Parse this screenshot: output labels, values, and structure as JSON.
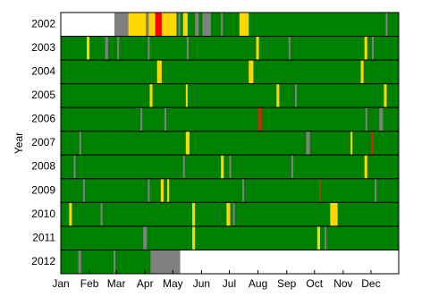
{
  "chart_data": {
    "type": "timeline",
    "y_label": "Year",
    "base_color": "#008000",
    "xlim": [
      0,
      365
    ],
    "xticks": [
      {
        "value": 0,
        "label": "Jan"
      },
      {
        "value": 31,
        "label": "Feb"
      },
      {
        "value": 60,
        "label": "Mar"
      },
      {
        "value": 91,
        "label": "Apr"
      },
      {
        "value": 121,
        "label": "May"
      },
      {
        "value": 152,
        "label": "Jun"
      },
      {
        "value": 182,
        "label": "Jul"
      },
      {
        "value": 213,
        "label": "Aug"
      },
      {
        "value": 244,
        "label": "Sep"
      },
      {
        "value": 274,
        "label": "Oct"
      },
      {
        "value": 305,
        "label": "Nov"
      },
      {
        "value": 335,
        "label": "Dec"
      }
    ],
    "categories": [
      "2002",
      "2003",
      "2004",
      "2005",
      "2006",
      "2007",
      "2008",
      "2009",
      "2010",
      "2011",
      "2012"
    ],
    "rows": [
      {
        "events": [
          {
            "start": 0,
            "end": 58,
            "color": "#ffffff"
          },
          {
            "start": 58,
            "end": 73,
            "color": "#808080"
          },
          {
            "start": 73,
            "end": 92,
            "color": "#ffd700"
          },
          {
            "start": 92,
            "end": 95,
            "color": "#808080"
          },
          {
            "start": 95,
            "end": 102,
            "color": "#ffd700"
          },
          {
            "start": 102,
            "end": 109,
            "color": "#ff0000"
          },
          {
            "start": 109,
            "end": 125,
            "color": "#ffd700"
          },
          {
            "start": 127,
            "end": 129,
            "color": "#808080"
          },
          {
            "start": 132,
            "end": 137,
            "color": "#ffd700"
          },
          {
            "start": 145,
            "end": 149,
            "color": "#808080"
          },
          {
            "start": 153,
            "end": 162,
            "color": "#808080"
          },
          {
            "start": 173,
            "end": 175,
            "color": "#808080"
          },
          {
            "start": 193,
            "end": 203,
            "color": "#ffd700"
          },
          {
            "start": 351,
            "end": 353,
            "color": "#808080"
          }
        ]
      },
      {
        "events": [
          {
            "start": 28,
            "end": 31,
            "color": "#ffd700"
          },
          {
            "start": 48,
            "end": 51,
            "color": "#808080"
          },
          {
            "start": 61,
            "end": 63,
            "color": "#808080"
          },
          {
            "start": 94,
            "end": 96,
            "color": "#808080"
          },
          {
            "start": 136,
            "end": 138,
            "color": "#808080"
          },
          {
            "start": 211,
            "end": 214,
            "color": "#ffd700"
          },
          {
            "start": 246,
            "end": 248,
            "color": "#808080"
          },
          {
            "start": 328,
            "end": 331,
            "color": "#ffd700"
          },
          {
            "start": 336,
            "end": 338,
            "color": "#808080"
          }
        ]
      },
      {
        "events": [
          {
            "start": 104,
            "end": 109,
            "color": "#ffd700"
          },
          {
            "start": 203,
            "end": 208,
            "color": "#ffd700"
          },
          {
            "start": 324,
            "end": 327,
            "color": "#ffd700"
          }
        ]
      },
      {
        "events": [
          {
            "start": 96,
            "end": 99,
            "color": "#ffd700"
          },
          {
            "start": 135,
            "end": 137,
            "color": "#ffd700"
          },
          {
            "start": 233,
            "end": 236,
            "color": "#ffd700"
          },
          {
            "start": 253,
            "end": 255,
            "color": "#808080"
          },
          {
            "start": 349,
            "end": 352,
            "color": "#ffd700"
          }
        ]
      },
      {
        "events": [
          {
            "start": 86,
            "end": 88,
            "color": "#808080"
          },
          {
            "start": 112,
            "end": 114,
            "color": "#808080"
          },
          {
            "start": 213,
            "end": 217,
            "color": "#c8280a"
          },
          {
            "start": 329,
            "end": 331,
            "color": "#808080"
          },
          {
            "start": 344,
            "end": 348,
            "color": "#808080"
          }
        ]
      },
      {
        "events": [
          {
            "start": 20,
            "end": 22,
            "color": "#808080"
          },
          {
            "start": 135,
            "end": 139,
            "color": "#ffd700"
          },
          {
            "start": 265,
            "end": 269,
            "color": "#808080"
          },
          {
            "start": 313,
            "end": 315,
            "color": "#ffd700"
          },
          {
            "start": 335,
            "end": 338,
            "color": "#c8280a"
          }
        ]
      },
      {
        "events": [
          {
            "start": 14,
            "end": 16,
            "color": "#808080"
          },
          {
            "start": 132,
            "end": 134,
            "color": "#808080"
          },
          {
            "start": 173,
            "end": 176,
            "color": "#ffd700"
          },
          {
            "start": 182,
            "end": 184,
            "color": "#808080"
          },
          {
            "start": 249,
            "end": 251,
            "color": "#808080"
          },
          {
            "start": 328,
            "end": 331,
            "color": "#ffd700"
          }
        ]
      },
      {
        "events": [
          {
            "start": 24,
            "end": 26,
            "color": "#808080"
          },
          {
            "start": 94,
            "end": 96,
            "color": "#808080"
          },
          {
            "start": 108,
            "end": 111,
            "color": "#ffd700"
          },
          {
            "start": 115,
            "end": 117,
            "color": "#ffd700"
          },
          {
            "start": 196,
            "end": 198,
            "color": "#808080"
          },
          {
            "start": 279,
            "end": 281,
            "color": "#7a5a00"
          },
          {
            "start": 339,
            "end": 341,
            "color": "#808080"
          }
        ]
      },
      {
        "events": [
          {
            "start": 9,
            "end": 12,
            "color": "#ffd700"
          },
          {
            "start": 43,
            "end": 45,
            "color": "#808080"
          },
          {
            "start": 142,
            "end": 145,
            "color": "#ffd700"
          },
          {
            "start": 179,
            "end": 183,
            "color": "#ffd700"
          },
          {
            "start": 186,
            "end": 188,
            "color": "#808080"
          },
          {
            "start": 291,
            "end": 299,
            "color": "#ffd700"
          }
        ]
      },
      {
        "events": [
          {
            "start": 89,
            "end": 93,
            "color": "#808080"
          },
          {
            "start": 142,
            "end": 145,
            "color": "#ffd700"
          },
          {
            "start": 277,
            "end": 280,
            "color": "#ffd700"
          },
          {
            "start": 285,
            "end": 287,
            "color": "#808080"
          }
        ]
      },
      {
        "events": [
          {
            "start": 19,
            "end": 22,
            "color": "#808080"
          },
          {
            "start": 57,
            "end": 59,
            "color": "#808080"
          },
          {
            "start": 97,
            "end": 129,
            "color": "#808080"
          },
          {
            "start": 129,
            "end": 365,
            "color": "#ffffff"
          }
        ]
      }
    ]
  }
}
